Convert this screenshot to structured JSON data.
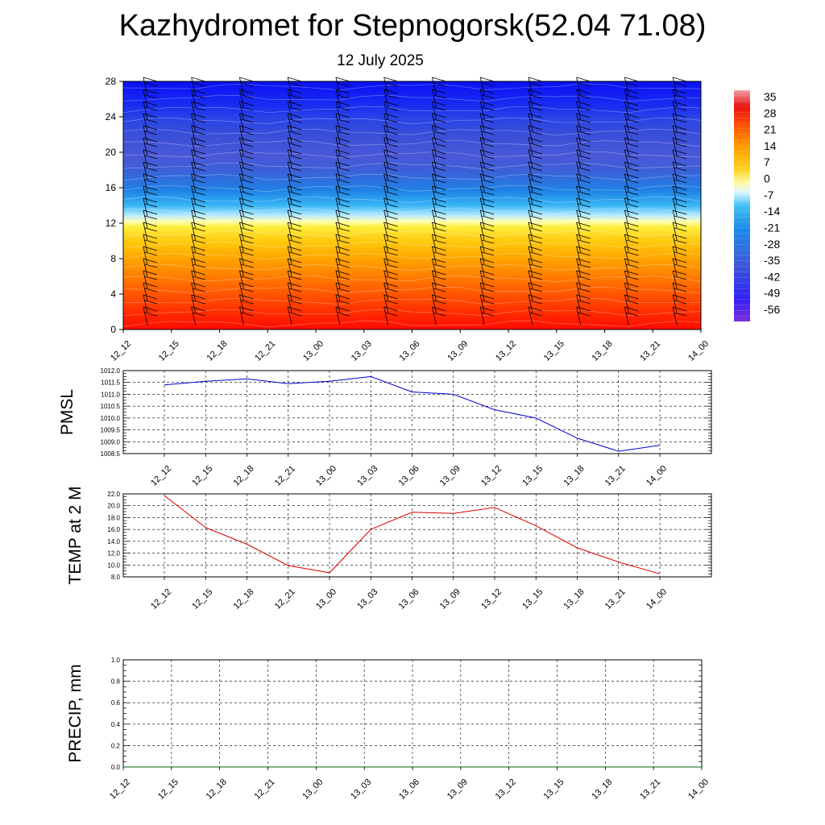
{
  "title": "Kazhydromet for Stepnogorsk(52.04 71.08)",
  "subtitle": "12 July 2025",
  "time_labels": [
    "12_12",
    "12_15",
    "12_18",
    "12_21",
    "13_00",
    "13_03",
    "13_06",
    "13_09",
    "13_12",
    "13_15",
    "13_18",
    "13_21",
    "14_00"
  ],
  "colors": {
    "pmsl_line": "#0000cc",
    "temp_line": "#dd0000",
    "precip_line": "#006400",
    "wind_barb": "#000000"
  },
  "chart_data": [
    {
      "type": "heatmap",
      "name": "temperature-profile",
      "yticks": [
        0,
        4,
        8,
        12,
        16,
        20,
        24,
        28
      ],
      "ylim": [
        0,
        28
      ],
      "colorbar": {
        "labels": [
          "35",
          "28",
          "21",
          "14",
          "7",
          "0",
          "-7",
          "-14",
          "-21",
          "-28",
          "-35",
          "-42",
          "-49",
          "-56"
        ],
        "range": [
          -56,
          35
        ]
      }
    },
    {
      "type": "line",
      "name": "PMSL",
      "ylabel": "PMSL",
      "ylim": [
        1008.5,
        1012.0
      ],
      "yticks": [
        1008.5,
        1009.0,
        1009.5,
        1010.0,
        1010.5,
        1011.0,
        1011.5,
        1012.0
      ],
      "ytick_labels": [
        "1008.5",
        "1009.0",
        "1009.5",
        "1010.0",
        "1010.5",
        "1011.0",
        "1011.5",
        "1012.0"
      ],
      "x": [
        "12_12",
        "12_15",
        "12_18",
        "12_21",
        "13_00",
        "13_03",
        "13_06",
        "13_09",
        "13_12",
        "13_15",
        "13_18",
        "13_21",
        "14_00"
      ],
      "values": [
        1011.4,
        1011.55,
        1011.65,
        1011.45,
        1011.55,
        1011.75,
        1011.1,
        1011.0,
        1010.35,
        1010.0,
        1009.15,
        1008.6,
        1008.85
      ]
    },
    {
      "type": "line",
      "name": "TEMP at 2 M",
      "ylabel": "TEMP at 2 M",
      "ylim": [
        8.0,
        22.0
      ],
      "yticks": [
        8,
        10,
        12,
        14,
        16,
        18,
        20,
        22
      ],
      "ytick_labels": [
        "8.0",
        "10.0",
        "12.0",
        "14.0",
        "16.0",
        "18.0",
        "20.0",
        "22.0"
      ],
      "x": [
        "12_12",
        "12_15",
        "12_18",
        "12_21",
        "13_00",
        "13_03",
        "13_06",
        "13_09",
        "13_12",
        "13_15",
        "13_18",
        "13_21",
        "14_00"
      ],
      "values": [
        21.7,
        16.3,
        13.5,
        9.9,
        8.7,
        16.0,
        18.9,
        18.7,
        19.7,
        16.6,
        12.9,
        10.5,
        8.5
      ]
    },
    {
      "type": "line",
      "name": "PRECIP, mm",
      "ylabel": "PRECIP, mm",
      "ylim": [
        0.0,
        1.0
      ],
      "yticks": [
        0.0,
        0.2,
        0.4,
        0.6,
        0.8,
        1.0
      ],
      "ytick_labels": [
        "0.0",
        "0.2",
        "0.4",
        "0.6",
        "0.8",
        "1.0"
      ],
      "x": [
        "12_12",
        "12_15",
        "12_18",
        "12_21",
        "13_00",
        "13_03",
        "13_06",
        "13_09",
        "13_12",
        "13_15",
        "13_18",
        "13_21",
        "14_00"
      ],
      "values": [
        0,
        0,
        0,
        0,
        0,
        0,
        0,
        0,
        0,
        0,
        0,
        0,
        0
      ]
    }
  ]
}
